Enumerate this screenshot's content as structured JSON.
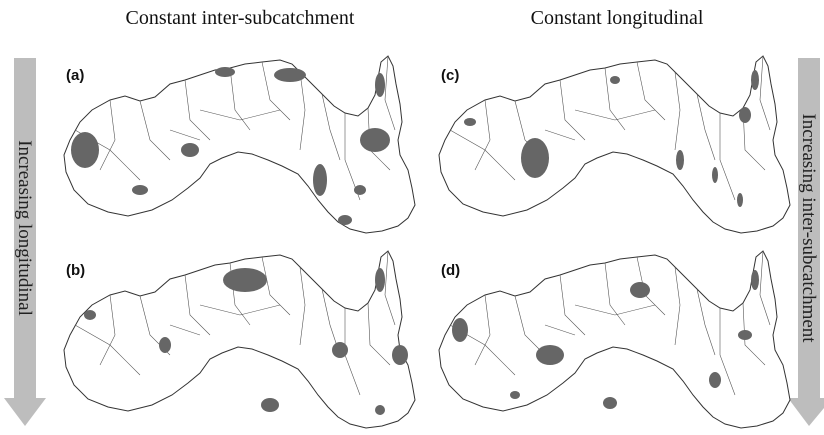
{
  "columns": [
    "Constant inter-subcatchment",
    "Constant longitudinal"
  ],
  "arrows": {
    "left": "Increasing longitudinal",
    "right": "Increasing inter-subcatchment"
  },
  "panels": [
    "(a)",
    "(b)",
    "(c)",
    "(d)"
  ]
}
